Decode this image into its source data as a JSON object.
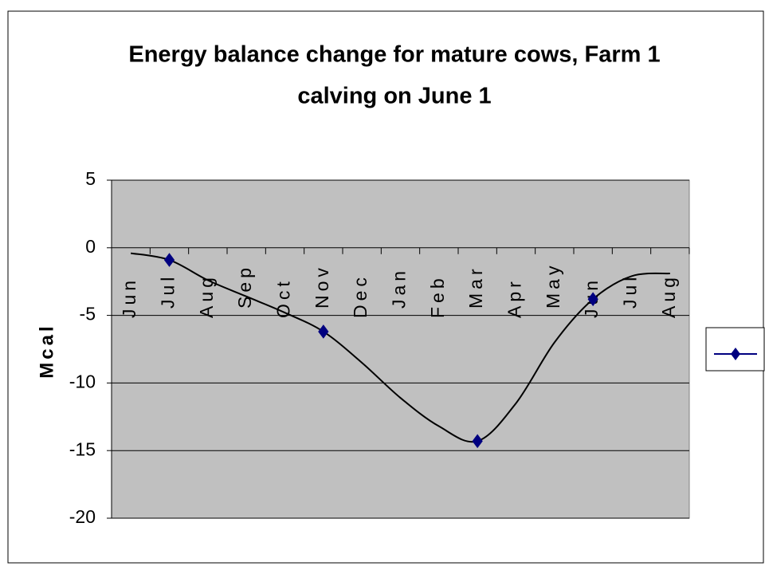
{
  "chart_data": {
    "type": "line",
    "title": [
      "Energy balance change for mature cows, Farm 1",
      "calving on June 1"
    ],
    "y_label": "Mcal",
    "categories": [
      "Jun",
      "Jul",
      "Aug",
      "Sep",
      "Oct",
      "Nov",
      "Dec",
      "Jan",
      "Feb",
      "Mar",
      "Apr",
      "May",
      "Jun",
      "Jul",
      "Aug"
    ],
    "series": [
      {
        "color": "#000000",
        "smooth": true,
        "marker": "none",
        "values": [
          -0.4,
          -0.9,
          -2.4,
          -3.6,
          -4.8,
          -6.2,
          -8.5,
          -11.1,
          -13.2,
          -14.3,
          -11.5,
          -7.0,
          -3.8,
          -2.1,
          -1.9
        ]
      },
      {
        "color": "#000080",
        "marker": "diamond",
        "line": false,
        "values": [
          null,
          -0.9,
          null,
          null,
          null,
          -6.2,
          null,
          null,
          null,
          -14.3,
          null,
          null,
          -3.8,
          null,
          null
        ]
      }
    ],
    "ylim": [
      -20,
      5
    ],
    "yticks": [
      -20,
      -15,
      -10,
      -5,
      0,
      5
    ],
    "grid": true,
    "background": "#c0c0c0",
    "legend": "right"
  }
}
